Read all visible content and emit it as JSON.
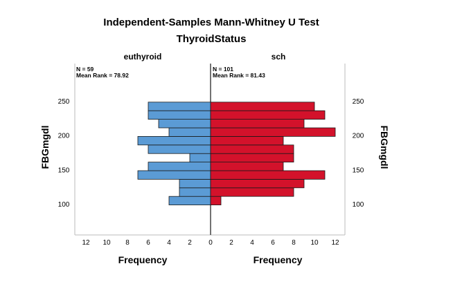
{
  "chart_data": {
    "type": "bar",
    "subtype": "population-pyramid",
    "title": "Independent-Samples Mann-Whitney U Test",
    "subtitle": "ThyroidStatus",
    "y_axis_label_left": "FBGmgdl",
    "y_axis_label_right": "FBGmgdl",
    "x_axis_label_left": "Frequency",
    "x_axis_label_right": "Frequency",
    "y_ticks": [
      100,
      150,
      200,
      250
    ],
    "x_ticks_left": [
      "12",
      "10",
      "8",
      "6",
      "4",
      "2"
    ],
    "x_ticks_right": [
      "0",
      "2",
      "4",
      "6",
      "8",
      "10",
      "12"
    ],
    "ylim": [
      55,
      305
    ],
    "xlim": [
      0,
      12
    ],
    "bin_width": 12.5,
    "bin_starts": [
      98.75,
      111.25,
      123.75,
      136.25,
      148.75,
      161.25,
      173.75,
      186.25,
      198.75,
      211.25,
      223.75,
      236.25
    ],
    "series": [
      {
        "name": "euthyroid",
        "stats": [
          "N = 59",
          "Mean Rank = 78.92"
        ],
        "color": "#5b9bd5",
        "values": [
          4,
          3,
          3,
          7,
          6,
          2,
          6,
          7,
          4,
          5,
          6,
          6
        ]
      },
      {
        "name": "sch",
        "stats": [
          "N = 101",
          "Mean Rank = 81.43"
        ],
        "color": "#d3122b",
        "values": [
          1,
          8,
          9,
          11,
          7,
          8,
          8,
          7,
          12,
          9,
          11,
          10
        ]
      }
    ],
    "grid": false
  }
}
